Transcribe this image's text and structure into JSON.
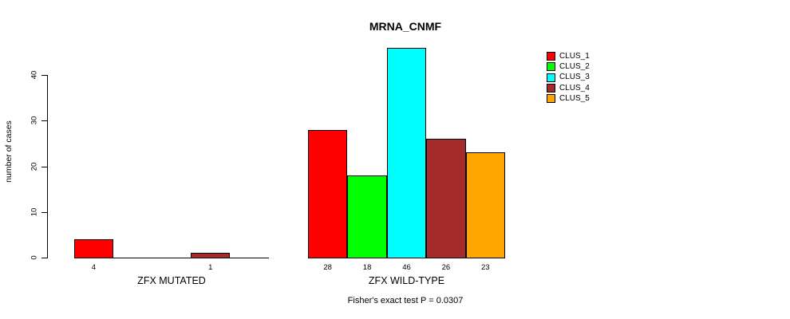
{
  "title": "MRNA_CNMF",
  "y_axis": {
    "label": "number of cases",
    "ticks": [
      "0",
      "10",
      "20",
      "30",
      "40"
    ]
  },
  "legend": {
    "entries": [
      {
        "label": "CLUS_1",
        "color": "#FF0000"
      },
      {
        "label": "CLUS_2",
        "color": "#00FF00"
      },
      {
        "label": "CLUS_3",
        "color": "#00FFFF"
      },
      {
        "label": "CLUS_4",
        "color": "#A52A2A"
      },
      {
        "label": "CLUS_5",
        "color": "#FFA500"
      }
    ]
  },
  "annotation": "Fisher's exact test P = 0.0307",
  "chart_data": {
    "type": "bar",
    "title": "MRNA_CNMF",
    "xlabel": "",
    "ylabel": "number of cases",
    "ylim": [
      0,
      46
    ],
    "yticks": [
      0,
      10,
      20,
      30,
      40
    ],
    "grid": false,
    "legend_position": "right",
    "series_names": [
      "CLUS_1",
      "CLUS_2",
      "CLUS_3",
      "CLUS_4",
      "CLUS_5"
    ],
    "series_colors": [
      "#FF0000",
      "#00FF00",
      "#00FFFF",
      "#A52A2A",
      "#FFA500"
    ],
    "groups": [
      {
        "label": "ZFX MUTATED",
        "values": [
          4,
          0,
          0,
          1,
          0
        ],
        "bar_labels": [
          "4",
          "",
          "",
          "1",
          ""
        ]
      },
      {
        "label": "ZFX WILD-TYPE",
        "values": [
          28,
          18,
          46,
          26,
          23
        ],
        "bar_labels": [
          "28",
          "18",
          "46",
          "26",
          "23"
        ]
      }
    ],
    "annotation": "Fisher's exact test P = 0.0307"
  }
}
